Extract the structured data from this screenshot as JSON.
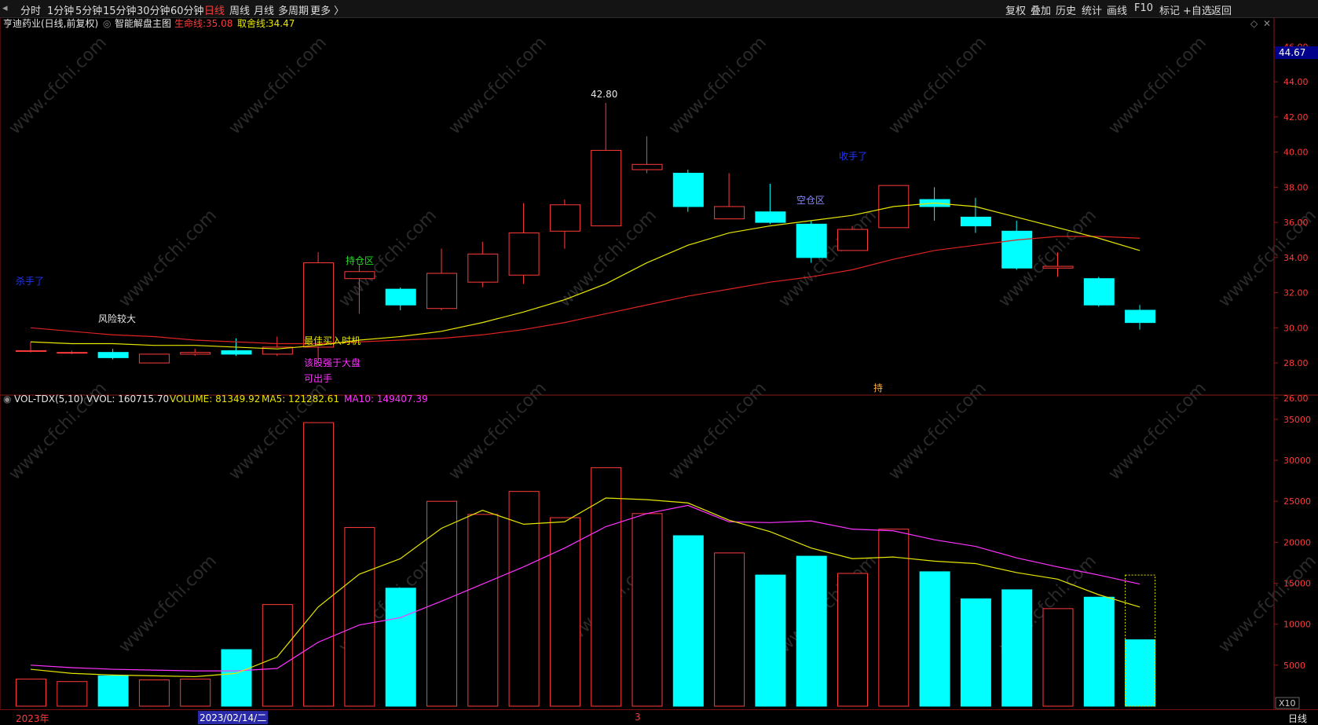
{
  "toolbar": {
    "periods": [
      "分时",
      "1分钟",
      "5分钟",
      "15分钟",
      "30分钟",
      "60分钟",
      "日线",
      "周线",
      "月线",
      "多周期",
      "更多 〉"
    ],
    "active_period": "日线",
    "right_buttons": [
      "复权",
      "叠加",
      "历史",
      "统计",
      "画线",
      "F10",
      "标记",
      "+自选",
      "返回"
    ]
  },
  "main_header": {
    "stock": "亨迪药业(日线,前复权)",
    "indicator": "智能解盘主图",
    "life_label": "生命线:",
    "life_value": "35.08",
    "take_label": "取舍线:",
    "take_value": "34.47"
  },
  "vol_header": {
    "name": "VOL-TDX(5,10)",
    "vvol": "VVOL: 160715.70",
    "volume": "VOLUME: 81349.92",
    "ma5": "MA5: 121282.61",
    "ma10": "MA10: 149407.39"
  },
  "price_axis": {
    "ticks": [
      "46.00",
      "44.00",
      "42.00",
      "40.00",
      "38.00",
      "36.00",
      "34.00",
      "32.00",
      "30.00",
      "28.00",
      "26.00"
    ],
    "current": "44.67"
  },
  "vol_axis": {
    "ticks": [
      "35000",
      "30000",
      "25000",
      "20000",
      "15000",
      "10000",
      "5000"
    ],
    "unit": "X10"
  },
  "bottom": {
    "year_label": "2023年",
    "cursor_date": "2023/02/14/二",
    "month_mark": "3",
    "period_btn": "日线"
  },
  "annotations": [
    {
      "text": "杀手了",
      "color": "#2233ff"
    },
    {
      "text": "风险较大",
      "color": "#e6e6e6"
    },
    {
      "text": "持仓区",
      "color": "#22dd22"
    },
    {
      "text": "最佳买入时机",
      "color": "#e6e600"
    },
    {
      "text": "该股强于大盘",
      "color": "#ff33ff"
    },
    {
      "text": "可出手",
      "color": "#ff33ff"
    },
    {
      "text": "42.80",
      "color": "#e6e6e6"
    },
    {
      "text": "收手了",
      "color": "#2233ff"
    },
    {
      "text": "空仓区",
      "color": "#8888ff"
    },
    {
      "text": "持",
      "color": "#ffaa33"
    }
  ],
  "watermark": "www.cfchi.com",
  "colors": {
    "up": "#ff3b3b",
    "down": "#00ffff",
    "ma_yellow": "#e6e600",
    "ma_red": "#dd2222",
    "ma_magenta": "#ff33ff"
  },
  "chart_data": {
    "type": "candlestick",
    "candles": [
      {
        "o": 28.7,
        "h": 29.2,
        "l": 28.6,
        "c": 28.7
      },
      {
        "o": 28.6,
        "h": 28.7,
        "l": 28.5,
        "c": 28.6
      },
      {
        "o": 28.6,
        "h": 28.8,
        "l": 28.2,
        "c": 28.3
      },
      {
        "o": 28.0,
        "h": 28.5,
        "l": 28.0,
        "c": 28.5
      },
      {
        "o": 28.5,
        "h": 28.8,
        "l": 28.4,
        "c": 28.6
      },
      {
        "o": 28.7,
        "h": 29.4,
        "l": 28.4,
        "c": 28.5
      },
      {
        "o": 28.5,
        "h": 29.5,
        "l": 28.4,
        "c": 28.9
      },
      {
        "o": 28.9,
        "h": 34.3,
        "l": 28.2,
        "c": 33.7
      },
      {
        "o": 32.8,
        "h": 33.6,
        "l": 30.8,
        "c": 33.2
      },
      {
        "o": 32.2,
        "h": 32.3,
        "l": 31.0,
        "c": 31.3
      },
      {
        "o": 31.1,
        "h": 34.5,
        "l": 31.0,
        "c": 33.1
      },
      {
        "o": 32.6,
        "h": 34.9,
        "l": 32.3,
        "c": 34.2
      },
      {
        "o": 33.0,
        "h": 37.1,
        "l": 32.5,
        "c": 35.4
      },
      {
        "o": 35.5,
        "h": 37.3,
        "l": 34.5,
        "c": 37.0
      },
      {
        "o": 35.8,
        "h": 42.8,
        "l": 35.8,
        "c": 40.1
      },
      {
        "o": 39.0,
        "h": 40.9,
        "l": 38.8,
        "c": 39.3
      },
      {
        "o": 38.8,
        "h": 39.0,
        "l": 36.6,
        "c": 36.9
      },
      {
        "o": 36.2,
        "h": 38.8,
        "l": 36.2,
        "c": 36.9
      },
      {
        "o": 36.6,
        "h": 38.2,
        "l": 35.9,
        "c": 36.0
      },
      {
        "o": 35.9,
        "h": 36.1,
        "l": 33.7,
        "c": 34.0
      },
      {
        "o": 34.4,
        "h": 35.8,
        "l": 34.4,
        "c": 35.6
      },
      {
        "o": 35.7,
        "h": 38.1,
        "l": 35.7,
        "c": 38.1
      },
      {
        "o": 37.3,
        "h": 38.0,
        "l": 36.1,
        "c": 36.9
      },
      {
        "o": 36.3,
        "h": 37.4,
        "l": 35.4,
        "c": 35.8
      },
      {
        "o": 35.5,
        "h": 36.1,
        "l": 33.3,
        "c": 33.4
      },
      {
        "o": 33.4,
        "h": 34.3,
        "l": 32.9,
        "c": 33.5
      },
      {
        "o": 32.8,
        "h": 32.9,
        "l": 31.2,
        "c": 31.3
      },
      {
        "o": 31.0,
        "h": 31.3,
        "l": 29.9,
        "c": 30.3
      }
    ],
    "ma_yellow": [
      29.2,
      29.1,
      29.1,
      29.0,
      29.0,
      28.9,
      28.8,
      29.0,
      29.3,
      29.5,
      29.8,
      30.3,
      30.9,
      31.6,
      32.5,
      33.7,
      34.7,
      35.4,
      35.8,
      36.1,
      36.4,
      36.9,
      37.1,
      36.9,
      36.3,
      35.7,
      35.1,
      34.4
    ],
    "ma_red": [
      30.0,
      29.8,
      29.6,
      29.5,
      29.3,
      29.2,
      29.1,
      29.1,
      29.2,
      29.3,
      29.4,
      29.6,
      29.9,
      30.3,
      30.8,
      31.3,
      31.8,
      32.2,
      32.6,
      32.9,
      33.3,
      33.9,
      34.4,
      34.7,
      35.0,
      35.2,
      35.2,
      35.1
    ],
    "ylim": [
      25.5,
      46.6
    ],
    "volume": [
      3300,
      3000,
      3700,
      3200,
      3300,
      6900,
      12400,
      34600,
      21800,
      14400,
      25000,
      23400,
      26200,
      23000,
      29100,
      23500,
      20800,
      18700,
      16000,
      18300,
      16200,
      21600,
      16400,
      13100,
      14200,
      11900,
      13300,
      8100
    ],
    "vol_ma5": [
      4500,
      4000,
      3800,
      3700,
      3600,
      4000,
      6000,
      12100,
      16100,
      18000,
      21700,
      23900,
      22200,
      22500,
      25400,
      25200,
      24800,
      22700,
      21300,
      19300,
      18000,
      18200,
      17700,
      17400,
      16300,
      15500,
      13600,
      12100
    ],
    "vol_ma10": [
      5000,
      4700,
      4500,
      4400,
      4300,
      4300,
      4600,
      7800,
      9900,
      10800,
      12800,
      14900,
      17000,
      19300,
      21900,
      23500,
      24500,
      22500,
      22400,
      22600,
      21600,
      21400,
      20300,
      19500,
      18100,
      17000,
      16000,
      14900
    ],
    "vol_ylim": [
      0,
      37000
    ]
  }
}
